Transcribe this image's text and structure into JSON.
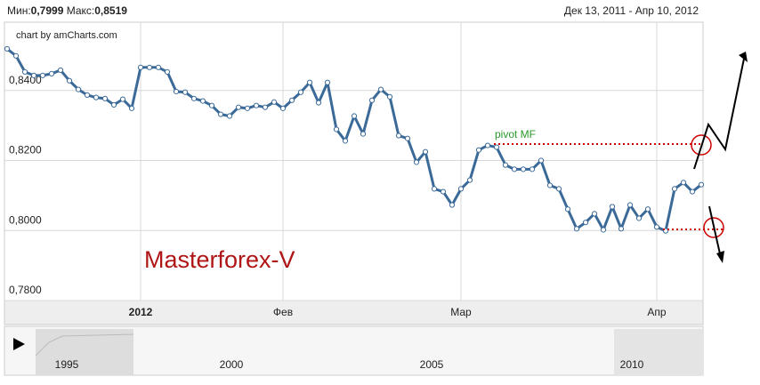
{
  "chart_data": {
    "type": "line",
    "header": {
      "min_label": "Мин:",
      "min_value": "0,7999",
      "max_label": "Макс:",
      "max_value": "0,8519",
      "period": "Дек 13, 2011 - Апр 10, 2012"
    },
    "credit": "chart by amCharts.com",
    "annotations": {
      "watermark": "Masterforex-V",
      "pivot": "pivot MF"
    },
    "categories": [
      null,
      null,
      null,
      null,
      null,
      null,
      null,
      null,
      null,
      null,
      null,
      null,
      null,
      null,
      null,
      "2012",
      null,
      null,
      null,
      null,
      null,
      null,
      null,
      null,
      null,
      null,
      null,
      null,
      null,
      null,
      null,
      "Фев",
      null,
      null,
      null,
      null,
      null,
      null,
      null,
      null,
      null,
      null,
      null,
      null,
      null,
      null,
      null,
      null,
      null,
      null,
      null,
      "Мар",
      null,
      null,
      null,
      null,
      null,
      null,
      null,
      null,
      null,
      null,
      null,
      null,
      null,
      null,
      null,
      null,
      null,
      null,
      null,
      null,
      null,
      "Апр",
      null,
      null,
      null,
      null,
      null
    ],
    "values": [
      0.8519,
      0.8499,
      0.8453,
      0.8443,
      0.8443,
      0.8448,
      0.8458,
      0.8428,
      0.8403,
      0.8387,
      0.838,
      0.8377,
      0.8359,
      0.8375,
      0.8349,
      0.8466,
      0.8466,
      0.8466,
      0.8453,
      0.8397,
      0.8395,
      0.8377,
      0.837,
      0.8357,
      0.8332,
      0.8327,
      0.8352,
      0.8349,
      0.8357,
      0.8352,
      0.8367,
      0.8349,
      0.8372,
      0.8395,
      0.8423,
      0.8365,
      0.8423,
      0.8289,
      0.8256,
      0.8327,
      0.8276,
      0.8372,
      0.8403,
      0.8382,
      0.8271,
      0.8263,
      0.8195,
      0.8225,
      0.8119,
      0.8111,
      0.8073,
      0.8119,
      0.8144,
      0.823,
      0.8243,
      0.8238,
      0.8187,
      0.8175,
      0.8175,
      0.8175,
      0.82,
      0.8129,
      0.8119,
      0.8061,
      0.8005,
      0.8023,
      0.8048,
      0.8002,
      0.8068,
      0.8005,
      0.8073,
      0.8035,
      0.8061,
      0.801,
      0.7999,
      0.8119,
      0.8137,
      0.8111,
      0.8131
    ],
    "color": "#3b6a98",
    "ylim": [
      0.78,
      0.8595
    ],
    "yticks": [
      {
        "value": 0.78,
        "label": "0,7800"
      },
      {
        "value": 0.8,
        "label": "0,8000"
      },
      {
        "value": 0.82,
        "label": "0,8200"
      },
      {
        "value": 0.84,
        "label": "0,8400"
      }
    ],
    "grid": true,
    "navigator": {
      "labels": [
        "1995",
        "2000",
        "2005",
        "2010"
      ]
    }
  }
}
